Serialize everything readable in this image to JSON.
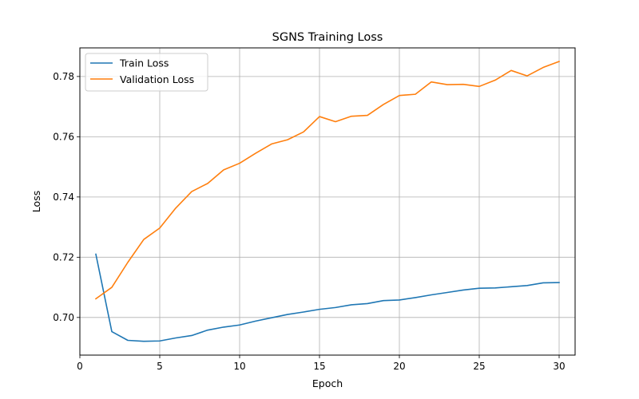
{
  "chart_data": {
    "type": "line",
    "title": "SGNS Training Loss",
    "xlabel": "Epoch",
    "ylabel": "Loss",
    "xlim": [
      0,
      31
    ],
    "ylim": [
      0.6875,
      0.7895
    ],
    "xticks": [
      0,
      5,
      10,
      15,
      20,
      25,
      30
    ],
    "yticks": [
      0.7,
      0.72,
      0.74,
      0.76,
      0.78
    ],
    "ytick_labels": [
      "0.70",
      "0.72",
      "0.74",
      "0.76",
      "0.78"
    ],
    "grid": true,
    "legend": "top-left",
    "x": [
      1,
      2,
      3,
      4,
      5,
      6,
      7,
      8,
      9,
      10,
      11,
      12,
      13,
      14,
      15,
      16,
      17,
      18,
      19,
      20,
      21,
      22,
      23,
      24,
      25,
      26,
      27,
      28,
      29,
      30
    ],
    "series": [
      {
        "name": "Train Loss",
        "color": "#1f77b4",
        "values": [
          0.721,
          0.6953,
          0.6924,
          0.6921,
          0.6922,
          0.6932,
          0.694,
          0.6958,
          0.6968,
          0.6975,
          0.6988,
          0.6999,
          0.701,
          0.7018,
          0.7027,
          0.7033,
          0.7042,
          0.7046,
          0.7056,
          0.7058,
          0.7066,
          0.7075,
          0.7083,
          0.7091,
          0.7097,
          0.7098,
          0.7102,
          0.7106,
          0.7115,
          0.7116
        ]
      },
      {
        "name": "Validation Loss",
        "color": "#ff7f0e",
        "values": [
          0.7062,
          0.71,
          0.7183,
          0.7259,
          0.7297,
          0.7363,
          0.7418,
          0.7445,
          0.749,
          0.7512,
          0.7545,
          0.7576,
          0.759,
          0.7616,
          0.7667,
          0.765,
          0.7668,
          0.7671,
          0.7707,
          0.7737,
          0.7741,
          0.7782,
          0.7773,
          0.7774,
          0.7767,
          0.7788,
          0.782,
          0.7802,
          0.783,
          0.785
        ]
      }
    ]
  }
}
